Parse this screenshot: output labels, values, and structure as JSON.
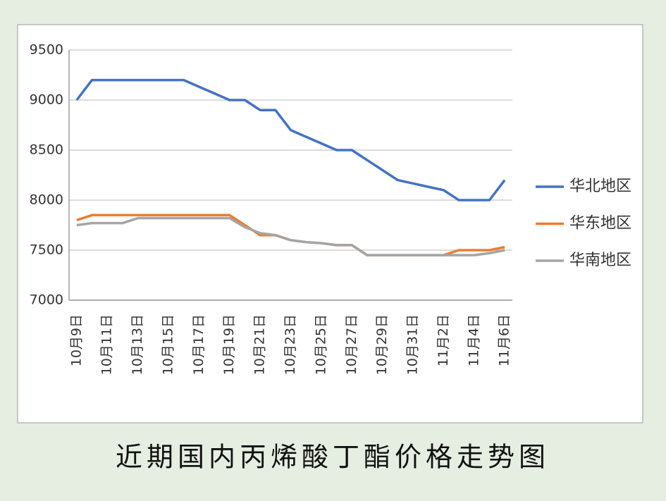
{
  "chart_data": {
    "type": "line",
    "title": "近期国内丙烯酸丁酯价格走势图",
    "categories": [
      "10月9日",
      null,
      "10月11日",
      null,
      "10月13日",
      null,
      "10月15日",
      null,
      "10月17日",
      null,
      "10月19日",
      null,
      "10月21日",
      null,
      "10月23日",
      null,
      "10月25日",
      null,
      "10月27日",
      null,
      "10月29日",
      null,
      "10月31日",
      null,
      "11月2日",
      null,
      "11月4日",
      null,
      "11月6日"
    ],
    "series": [
      {
        "name": "华北地区",
        "color": "#4472c4",
        "values": [
          9000,
          9200,
          9200,
          9200,
          9200,
          9200,
          9200,
          9200,
          9133,
          9067,
          9000,
          9000,
          8900,
          8900,
          8700,
          8633,
          8567,
          8500,
          8500,
          8400,
          8300,
          8200,
          8167,
          8133,
          8100,
          8000,
          8000,
          8000,
          8200
        ]
      },
      {
        "name": "华东地区",
        "color": "#ed7d31",
        "values": [
          7800,
          7850,
          7850,
          7850,
          7850,
          7850,
          7850,
          7850,
          7850,
          7850,
          7850,
          7750,
          7650,
          7650,
          7600,
          7580,
          7570,
          7550,
          7550,
          7450,
          7450,
          7450,
          7450,
          7450,
          7450,
          7500,
          7500,
          7500,
          7530
        ]
      },
      {
        "name": "华南地区",
        "color": "#a5a5a5",
        "values": [
          7750,
          7770,
          7770,
          7770,
          7820,
          7820,
          7820,
          7820,
          7820,
          7820,
          7820,
          7730,
          7670,
          7650,
          7600,
          7580,
          7570,
          7550,
          7550,
          7450,
          7450,
          7450,
          7450,
          7450,
          7450,
          7450,
          7450,
          7470,
          7500
        ]
      }
    ],
    "ylim": [
      7000,
      9500
    ],
    "yticks": [
      7000,
      7500,
      8000,
      8500,
      9000,
      9500
    ],
    "grid": true,
    "legend": "right"
  }
}
